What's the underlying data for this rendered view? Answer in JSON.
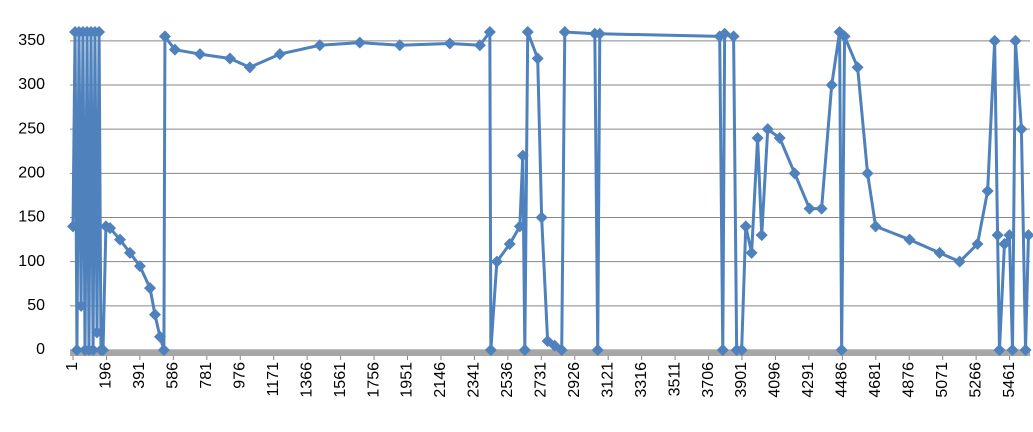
{
  "chart_data": {
    "type": "line",
    "xlim": [
      1,
      5580
    ],
    "xticks": [
      1,
      196,
      391,
      586,
      781,
      976,
      1171,
      1366,
      1561,
      1756,
      1951,
      2146,
      2341,
      2536,
      2731,
      2926,
      3121,
      3316,
      3511,
      3706,
      3901,
      4096,
      4291,
      4486,
      4681,
      4876,
      5071,
      5266,
      5461
    ],
    "ylim": [
      0,
      360
    ],
    "yticks": [
      0,
      50,
      100,
      150,
      200,
      250,
      300,
      350
    ],
    "grid": true,
    "x": [
      1,
      13,
      24,
      36,
      48,
      59,
      71,
      83,
      94,
      106,
      118,
      129,
      141,
      153,
      164,
      176,
      193,
      217,
      275,
      333,
      391,
      450,
      479,
      508,
      531,
      537,
      595,
      741,
      916,
      1032,
      1207,
      1440,
      1673,
      1906,
      2198,
      2373,
      2431,
      2437,
      2472,
      2547,
      2606,
      2623,
      2635,
      2652,
      2710,
      2733,
      2768,
      2809,
      2850,
      2868,
      3043,
      3060,
      3072,
      3771,
      3789,
      3800,
      3852,
      3870,
      3899,
      3923,
      3957,
      3992,
      4016,
      4051,
      4121,
      4208,
      4295,
      4365,
      4424,
      4470,
      4482,
      4499,
      4575,
      4633,
      4680,
      4878,
      5053,
      5170,
      5274,
      5333,
      5374,
      5391,
      5402,
      5431,
      5460,
      5478,
      5495,
      5530,
      5554,
      5571
    ],
    "series": [
      {
        "color": "#4f81bd",
        "values": [
          140,
          360,
          0,
          360,
          50,
          360,
          0,
          360,
          0,
          360,
          0,
          360,
          20,
          360,
          0,
          0,
          140,
          138,
          125,
          110,
          95,
          70,
          40,
          15,
          0,
          355,
          340,
          335,
          330,
          320,
          335,
          345,
          348,
          345,
          347,
          345,
          360,
          0,
          100,
          120,
          140,
          220,
          0,
          360,
          330,
          150,
          10,
          5,
          0,
          360,
          358,
          0,
          358,
          355,
          0,
          358,
          355,
          0,
          0,
          140,
          110,
          240,
          130,
          250,
          240,
          200,
          160,
          160,
          300,
          360,
          0,
          355,
          320,
          200,
          140,
          125,
          110,
          100,
          120,
          180,
          350,
          130,
          0,
          120,
          130,
          0,
          350,
          250,
          0,
          130
        ]
      }
    ]
  }
}
